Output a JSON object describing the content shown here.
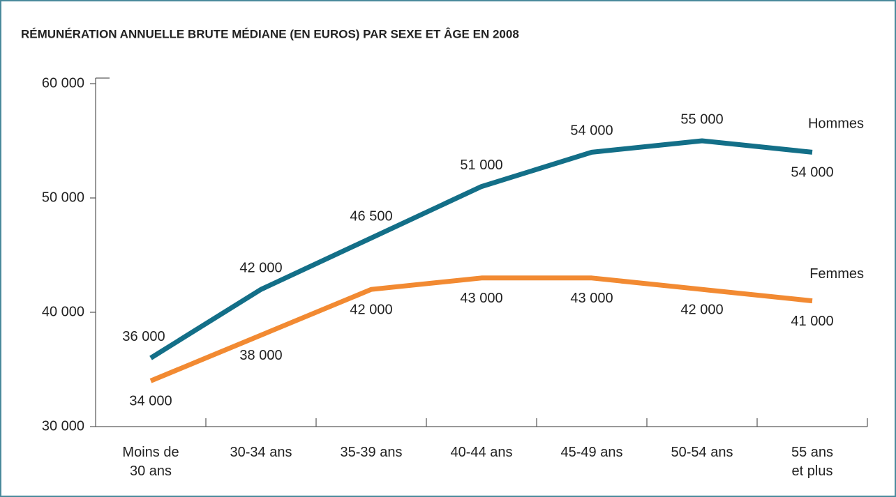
{
  "chart_data": {
    "type": "line",
    "title": "RÉMUNÉRATION ANNUELLE BRUTE MÉDIANE (EN EUROS) PAR SEXE ET ÂGE EN 2008",
    "categories": [
      "Moins de\n30 ans",
      "30-34 ans",
      "35-39 ans",
      "40-44 ans",
      "45-49 ans",
      "50-54 ans",
      "55 ans\net plus"
    ],
    "series": [
      {
        "name": "Hommes",
        "color": "#136f88",
        "values": [
          36000,
          42000,
          46500,
          51000,
          54000,
          55000,
          54000
        ],
        "value_labels": [
          "36 000",
          "42 000",
          "46 500",
          "51 000",
          "54 000",
          "55 000",
          "54 000"
        ]
      },
      {
        "name": "Femmes",
        "color": "#f28a32",
        "values": [
          34000,
          38000,
          42000,
          43000,
          43000,
          42000,
          41000
        ],
        "value_labels": [
          "34 000",
          "38 000",
          "42 000",
          "43 000",
          "43 000",
          "42 000",
          "41 000"
        ]
      }
    ],
    "ylim": [
      30000,
      60000
    ],
    "yticks": [
      {
        "value": 30000,
        "label": "30 000"
      },
      {
        "value": 40000,
        "label": "40 000"
      },
      {
        "value": 50000,
        "label": "50 000"
      },
      {
        "value": 60000,
        "label": "60 000"
      }
    ]
  }
}
